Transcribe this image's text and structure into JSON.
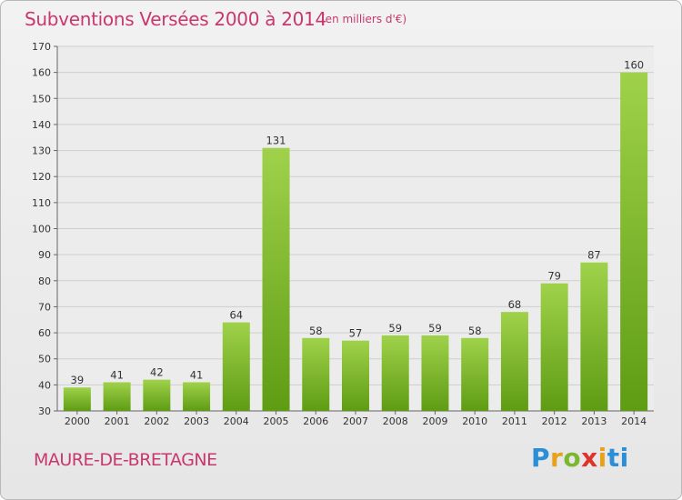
{
  "header": {
    "title": "Subventions Versées 2000 à 2014",
    "subtitle": "(en milliers d'€)"
  },
  "footer": {
    "place": "MAURE-DE-BRETAGNE",
    "logo": [
      "P",
      "r",
      "o",
      "x",
      "i",
      "ti"
    ]
  },
  "colors": {
    "title": "#c8386e",
    "bar_light": "#9fd24a",
    "bar_dark": "#5e9c14",
    "grid": "#cfcfcf"
  },
  "chart_data": {
    "type": "bar",
    "title": "Subventions Versées 2000 à 2014",
    "subtitle": "(en milliers d'€)",
    "categories": [
      "2000",
      "2001",
      "2002",
      "2003",
      "2004",
      "2005",
      "2006",
      "2007",
      "2008",
      "2009",
      "2010",
      "2011",
      "2012",
      "2013",
      "2014"
    ],
    "values": [
      39,
      41,
      42,
      41,
      64,
      131,
      58,
      57,
      59,
      59,
      58,
      68,
      79,
      87,
      160
    ],
    "ylim": [
      30,
      170
    ],
    "yticks": [
      30,
      40,
      50,
      60,
      70,
      80,
      90,
      100,
      110,
      120,
      130,
      140,
      150,
      160,
      170
    ],
    "grid": true,
    "xlabel": "",
    "ylabel": ""
  }
}
